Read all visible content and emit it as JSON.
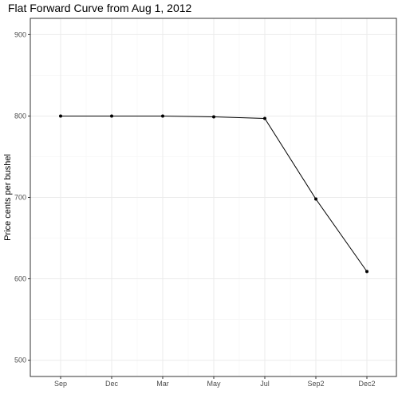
{
  "chart_data": {
    "type": "line",
    "title": "Flat Forward Curve from Aug 1, 2012",
    "xlabel": "",
    "ylabel": "Price cents per bushel",
    "categories": [
      "Sep",
      "Dec",
      "Mar",
      "May",
      "Jul",
      "Sep2",
      "Dec2"
    ],
    "series": [
      {
        "values": [
          800,
          800,
          800,
          799,
          797,
          698,
          609
        ]
      }
    ],
    "ylim": [
      480,
      920
    ],
    "yticks": [
      500,
      600,
      700,
      800,
      900
    ],
    "grid": true,
    "legend": "none",
    "colors": {
      "line": "#000000",
      "grid_major": "#ebebeb",
      "grid_minor": "#f5f5f5",
      "panel_border": "#333333",
      "tick_label": "#4d4d4d"
    }
  }
}
